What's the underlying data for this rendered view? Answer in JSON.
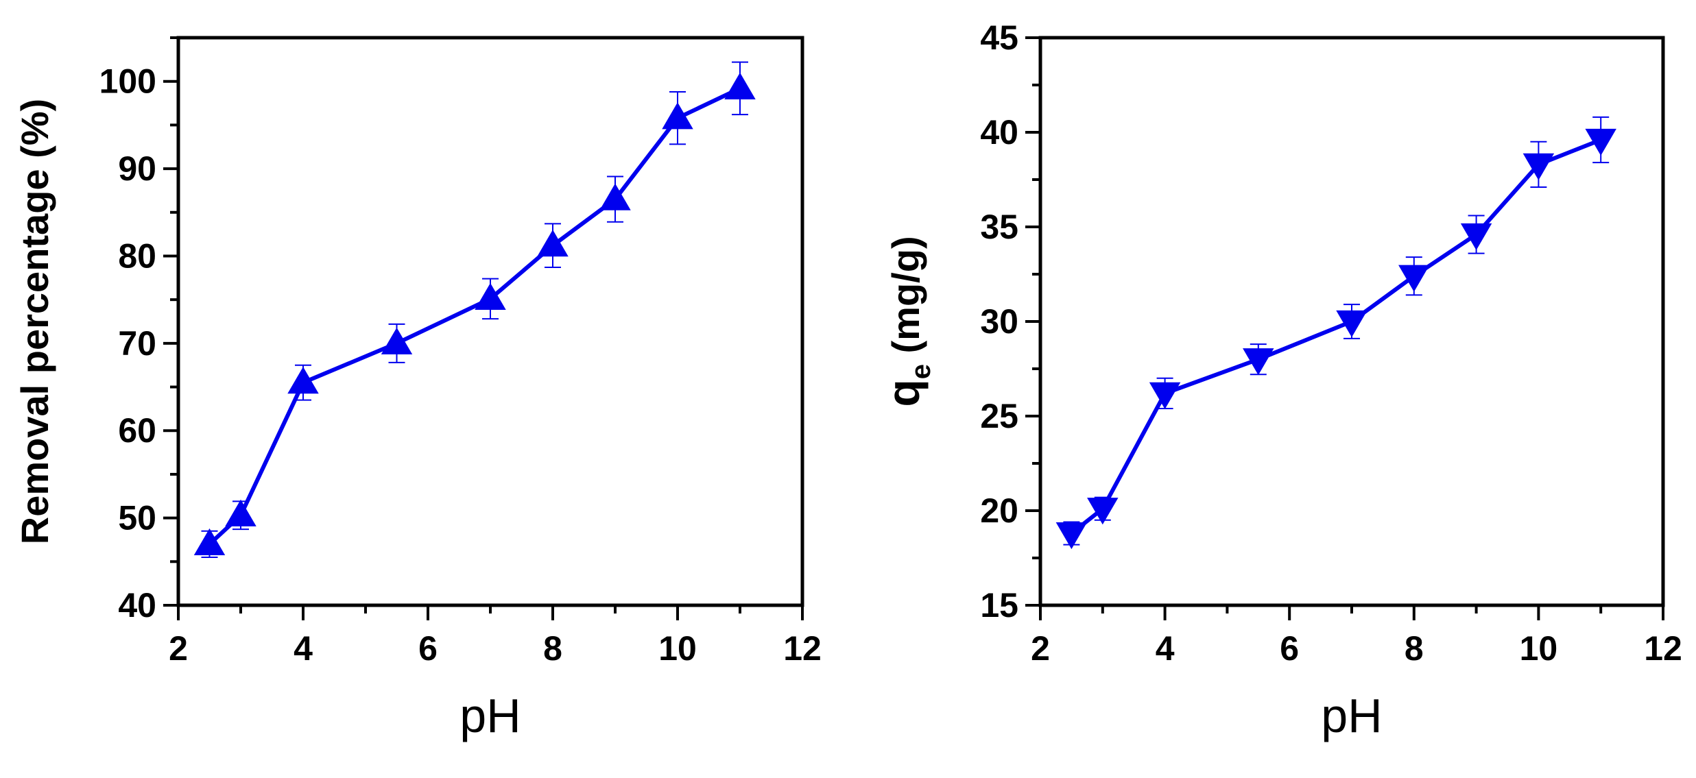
{
  "chart_data": [
    {
      "type": "line",
      "xlabel": "pH",
      "ylabel": "Removal percentage (%)",
      "xlim": [
        2,
        12
      ],
      "ylim": [
        40,
        105
      ],
      "xticks": [
        2,
        4,
        6,
        8,
        10,
        12
      ],
      "yticks": [
        40,
        50,
        60,
        70,
        80,
        90,
        100
      ],
      "marker": "triangle-up",
      "color": "#0000ee",
      "grid": false,
      "series": [
        {
          "x": [
            2.5,
            3,
            4,
            5.5,
            7,
            8,
            9,
            10,
            11
          ],
          "y": [
            47,
            50.3,
            65.5,
            70,
            75.1,
            81.2,
            86.5,
            95.8,
            99.2
          ],
          "err": [
            1.5,
            1.6,
            2.0,
            2.2,
            2.3,
            2.5,
            2.6,
            3.0,
            3.0
          ]
        }
      ]
    },
    {
      "type": "line",
      "xlabel": "pH",
      "ylabel_main": "q",
      "ylabel_sub": "e",
      "ylabel_rest": " (mg/g)",
      "xlim": [
        2,
        12
      ],
      "ylim": [
        15,
        45
      ],
      "xticks": [
        2,
        4,
        6,
        8,
        10,
        12
      ],
      "yticks": [
        15,
        20,
        25,
        30,
        35,
        40,
        45
      ],
      "marker": "triangle-down",
      "color": "#0000ee",
      "grid": false,
      "series": [
        {
          "x": [
            2.5,
            3,
            4,
            5.5,
            7,
            8,
            9,
            10,
            11
          ],
          "y": [
            18.8,
            20.1,
            26.2,
            28,
            30,
            32.4,
            34.6,
            38.3,
            39.6
          ],
          "err": [
            0.6,
            0.6,
            0.8,
            0.8,
            0.9,
            1.0,
            1.0,
            1.2,
            1.2
          ]
        }
      ]
    }
  ]
}
